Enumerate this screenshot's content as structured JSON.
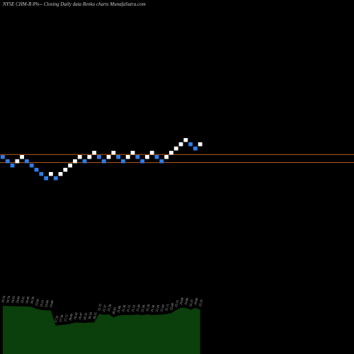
{
  "title": "NYSE CHM-B 8%-- Closing Daily data Renko charts MunafaSutra.com",
  "chart_data": {
    "type": "renko",
    "title": "NYSE CHM-B 8%-- Closing Daily data Renko charts MunafaSutra.com",
    "colors": {
      "up": "#ffffff",
      "down": "#2e7de6",
      "reference_line": "#b85c1e",
      "volume_fill": "#0b3f0b",
      "volume_label": "#bbbbbb"
    },
    "bricks": [
      {
        "dir": "down",
        "level": 0
      },
      {
        "dir": "down",
        "level": -1
      },
      {
        "dir": "down",
        "level": -2
      },
      {
        "dir": "up",
        "level": -1
      },
      {
        "dir": "up",
        "level": 0
      },
      {
        "dir": "down",
        "level": -1
      },
      {
        "dir": "down",
        "level": -2
      },
      {
        "dir": "down",
        "level": -3
      },
      {
        "dir": "down",
        "level": -4
      },
      {
        "dir": "down",
        "level": -5
      },
      {
        "dir": "up",
        "level": -4
      },
      {
        "dir": "down",
        "level": -5
      },
      {
        "dir": "up",
        "level": -4
      },
      {
        "dir": "up",
        "level": -3
      },
      {
        "dir": "up",
        "level": -2
      },
      {
        "dir": "up",
        "level": -1
      },
      {
        "dir": "up",
        "level": 0
      },
      {
        "dir": "down",
        "level": -1
      },
      {
        "dir": "up",
        "level": 0
      },
      {
        "dir": "up",
        "level": 1
      },
      {
        "dir": "down",
        "level": 0
      },
      {
        "dir": "down",
        "level": -1
      },
      {
        "dir": "up",
        "level": 0
      },
      {
        "dir": "up",
        "level": 1
      },
      {
        "dir": "down",
        "level": 0
      },
      {
        "dir": "down",
        "level": -1
      },
      {
        "dir": "up",
        "level": 0
      },
      {
        "dir": "up",
        "level": 1
      },
      {
        "dir": "down",
        "level": 0
      },
      {
        "dir": "down",
        "level": -1
      },
      {
        "dir": "up",
        "level": 0
      },
      {
        "dir": "up",
        "level": 1
      },
      {
        "dir": "down",
        "level": 0
      },
      {
        "dir": "down",
        "level": -1
      },
      {
        "dir": "up",
        "level": 0
      },
      {
        "dir": "up",
        "level": 1
      },
      {
        "dir": "up",
        "level": 2
      },
      {
        "dir": "up",
        "level": 3
      },
      {
        "dir": "up",
        "level": 4
      },
      {
        "dir": "down",
        "level": 3
      },
      {
        "dir": "down",
        "level": 2
      },
      {
        "dir": "up",
        "level": 3
      }
    ],
    "reference_lines": [
      {
        "level": 0.3
      },
      {
        "level": -1.6
      }
    ],
    "volume_labels": [
      "24.76",
      "24.70",
      "24.65",
      "24.60",
      "24.55",
      "24.49",
      "24.38",
      "23.65",
      "23.21",
      "23.08",
      "23.00",
      "17.32",
      "17.56",
      "17.72",
      "18.00",
      "18.50",
      "18.47",
      "18.32",
      "18.54",
      "18.55",
      "21.75",
      "21.37",
      "21.58",
      "20.43",
      "21.06",
      "21.36",
      "21.31",
      "21.33",
      "21.49",
      "21.28",
      "21.58",
      "21.30",
      "21.41",
      "21.44",
      "21.71",
      "22.00",
      "23.15",
      "24.08",
      "24.00",
      "23.33",
      "24.00",
      "23.35"
    ]
  }
}
